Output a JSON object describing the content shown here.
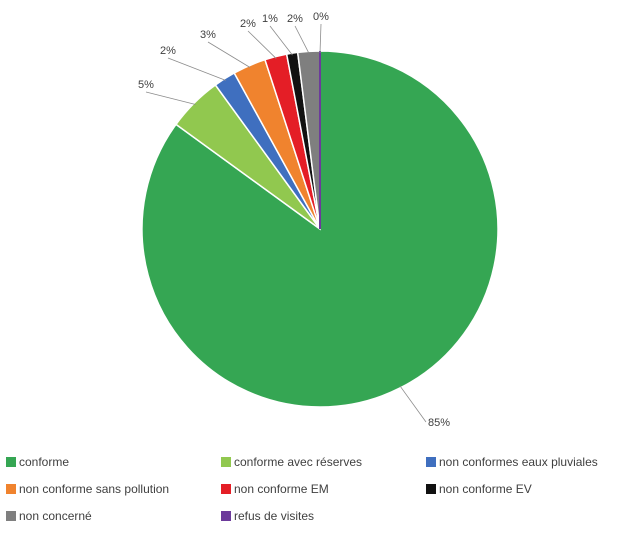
{
  "chart_data": {
    "type": "pie",
    "title": "",
    "start_angle_deg": 0,
    "direction": "clockwise",
    "slices": [
      {
        "name": "conforme",
        "value": 85,
        "label": "85%",
        "color": "#35a653"
      },
      {
        "name": "conforme avec réserves",
        "value": 5,
        "label": "5%",
        "color": "#91c84f"
      },
      {
        "name": "non conformes eaux pluviales",
        "value": 2,
        "label": "2%",
        "color": "#3f6fbf"
      },
      {
        "name": "non conforme sans pollution",
        "value": 3,
        "label": "3%",
        "color": "#f0832e"
      },
      {
        "name": "non conforme EM",
        "value": 2,
        "label": "2%",
        "color": "#e41e26"
      },
      {
        "name": "non conforme EV",
        "value": 1,
        "label": "1%",
        "color": "#111111"
      },
      {
        "name": "non concerné",
        "value": 2,
        "label": "2%",
        "color": "#7f7f7f"
      },
      {
        "name": "refus de visites",
        "value": 0,
        "label": "0%",
        "color": "#6c3a9b"
      }
    ],
    "legend_position": "bottom"
  }
}
